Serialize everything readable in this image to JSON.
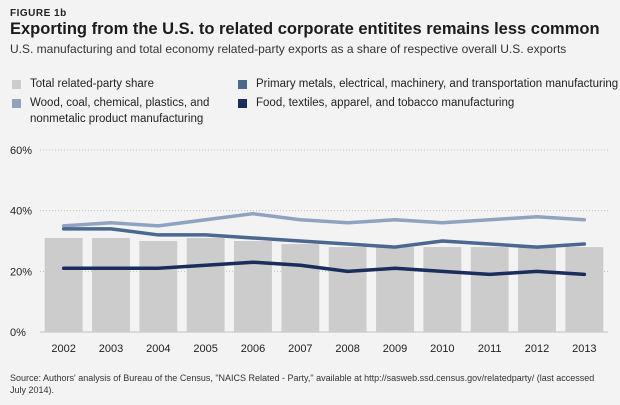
{
  "figure_label": "FIGURE 1b",
  "title": "Exporting from the U.S. to related corporate entitites remains less common",
  "subtitle": "U.S. manufacturing and total economy related-party exports as a share of respective overall U.S. exports",
  "source": "Source: Authors' analysis of Bureau of the Census, \"NAICS Related - Party,\" available at http://sasweb.ssd.census.gov/relatedparty/ (last accessed July 2014).",
  "colors": {
    "bar": "#cccccc",
    "wood": "#8fa3c0",
    "primary": "#4a6890",
    "food": "#1a2d5c",
    "grid": "#bfbfbf"
  },
  "legend": [
    {
      "key": "total",
      "lines": [
        "Total related-party share"
      ]
    },
    {
      "key": "wood",
      "lines": [
        "Wood, coal, chemical, plastics, and",
        "nonmetalic product manufacturing"
      ]
    },
    {
      "key": "primary",
      "lines": [
        "Primary metals, electrical, machinery, and transportation manufacturing"
      ]
    },
    {
      "key": "food",
      "lines": [
        "Food, textiles, apparel, and tobacco manufacturing"
      ]
    }
  ],
  "chart_data": {
    "type": "bar",
    "categories": [
      "2002",
      "2003",
      "2004",
      "2005",
      "2006",
      "2007",
      "2008",
      "2009",
      "2010",
      "2011",
      "2012",
      "2013"
    ],
    "ylim": [
      0,
      60
    ],
    "yticks": [
      0,
      20,
      40,
      60
    ],
    "ytick_labels": [
      "0%",
      "20%",
      "40%",
      "60%"
    ],
    "grid": true,
    "legend_position": "top",
    "series": [
      {
        "name": "Total related-party share",
        "kind": "bar",
        "color_key": "bar",
        "values": [
          31,
          31,
          30,
          31,
          30,
          29,
          28,
          28,
          28,
          28,
          28,
          28
        ]
      },
      {
        "name": "Wood, coal, chemical, plastics, and nonmetalic product manufacturing",
        "kind": "line",
        "color_key": "wood",
        "values": [
          35,
          36,
          35,
          37,
          39,
          37,
          36,
          37,
          36,
          37,
          38,
          37
        ]
      },
      {
        "name": "Primary metals, electrical, machinery, and transportation manufacturing",
        "kind": "line",
        "color_key": "primary",
        "values": [
          34,
          34,
          32,
          32,
          31,
          30,
          29,
          28,
          30,
          29,
          28,
          29
        ]
      },
      {
        "name": "Food, textiles, apparel, and tobacco manufacturing",
        "kind": "line",
        "color_key": "food",
        "values": [
          21,
          21,
          21,
          22,
          23,
          22,
          20,
          21,
          20,
          19,
          20,
          19
        ]
      }
    ]
  }
}
